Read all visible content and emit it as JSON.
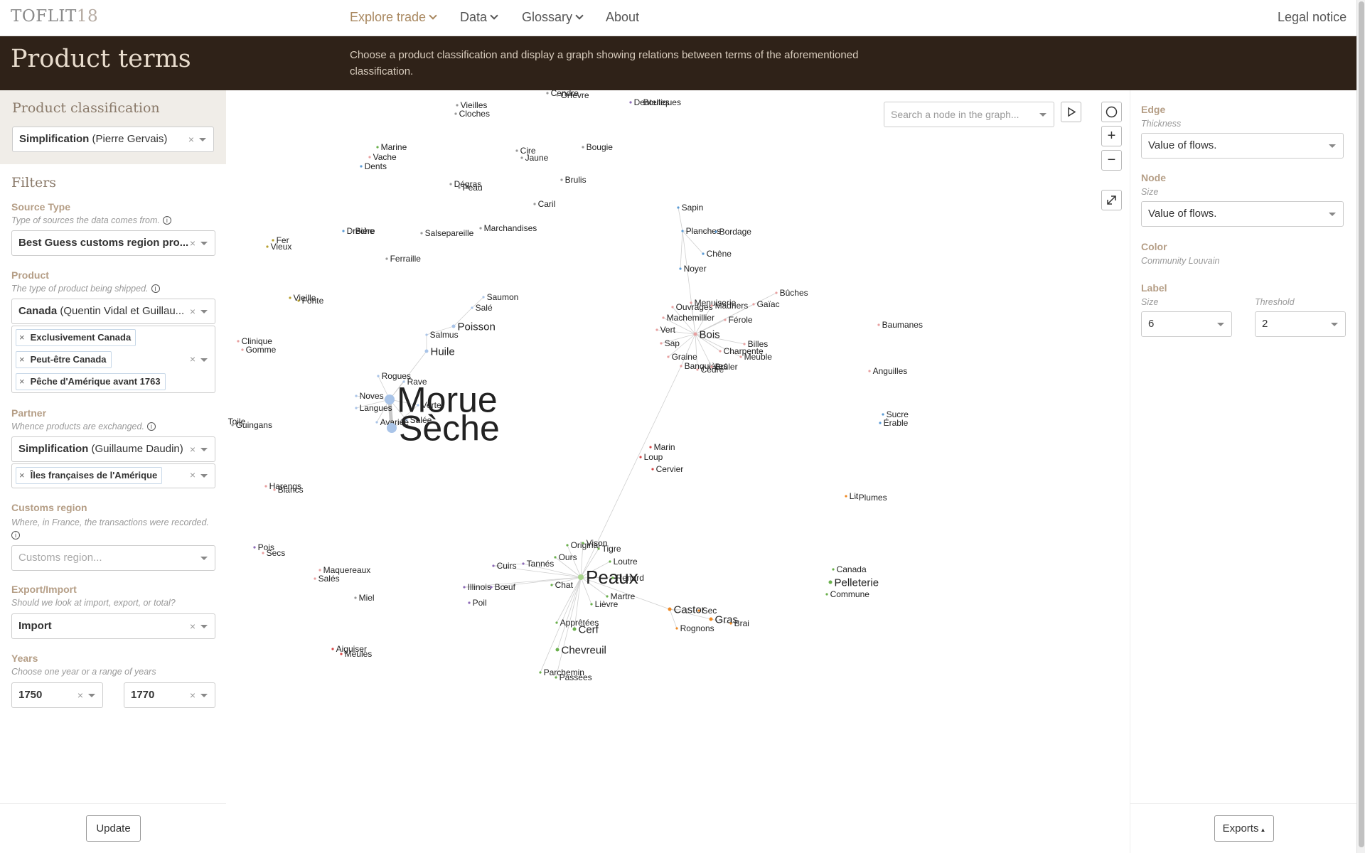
{
  "nav": {
    "brand": "TOFLIT",
    "brand_num": "18",
    "explore": "Explore trade",
    "data": "Data",
    "glossary": "Glossary",
    "about": "About",
    "legal": "Legal notice"
  },
  "banner": {
    "title": "Product terms",
    "description": "Choose a product classification and display a graph showing relations between terms of the aforementioned classification."
  },
  "left": {
    "classification_heading": "Product classification",
    "classification": {
      "name": "Simplification",
      "author": "(Pierre Gervais)"
    },
    "filters_heading": "Filters",
    "source_type": {
      "label": "Source Type",
      "help": "Type of sources the data comes from.",
      "value": "Best Guess customs region pro..."
    },
    "product": {
      "label": "Product",
      "help": "The type of product being shipped.",
      "classification_name": "Canada",
      "classification_author": "(Quentin Vidal et Guillau...",
      "tags": [
        "Exclusivement Canada",
        "Peut-être Canada",
        "Pêche d'Amérique avant 1763"
      ]
    },
    "partner": {
      "label": "Partner",
      "help": "Whence products are exchanged.",
      "classification_name": "Simplification",
      "classification_author": "(Guillaume Daudin)",
      "tags": [
        "Îles françaises de l'Amérique"
      ]
    },
    "customs": {
      "label": "Customs region",
      "help": "Where, in France, the transactions were recorded.",
      "placeholder": "Customs region..."
    },
    "export_import": {
      "label": "Export/Import",
      "help": "Should we look at import, export, or total?",
      "value": "Import"
    },
    "years": {
      "label": "Years",
      "help": "Choose one year or a range of years",
      "from": "1750",
      "to": "1770"
    },
    "update_label": "Update",
    "clear_symbol": "×",
    "info_symbol": "i"
  },
  "graph": {
    "search_placeholder": "Search a node in the graph...",
    "controls": {
      "zoom_in": "+",
      "zoom_out": "−"
    },
    "colors": {
      "blue": "#5b9bd5",
      "lightblue": "#a9c4e8",
      "green": "#6ab04c",
      "lightgreen": "#a8d58c",
      "orange": "#f08a24",
      "red": "#d64545",
      "pink": "#e8a0a0",
      "purple": "#8e6bb8",
      "gray": "#999999",
      "olive": "#b8a030",
      "edge": "#cfcfcf"
    },
    "nodes": [
      [
        "Cendre",
        770,
        131,
        "gray",
        1
      ],
      [
        "Orfèvre",
        784,
        134,
        "gray",
        1
      ],
      [
        "Vieilles",
        643,
        148,
        "gray",
        1
      ],
      [
        "Cloches",
        641,
        160,
        "gray",
        1
      ],
      [
        "Dentelles",
        887,
        144,
        "purple",
        1
      ],
      [
        "Boutiques",
        900,
        144,
        "gray",
        1
      ],
      [
        "Marine",
        531,
        207,
        "green",
        1
      ],
      [
        "Vache",
        520,
        221,
        "pink",
        1
      ],
      [
        "Dents",
        508,
        234,
        "blue",
        1
      ],
      [
        "Cire",
        727,
        212,
        "gray",
        1
      ],
      [
        "Jaune",
        734,
        222,
        "gray",
        1
      ],
      [
        "Bougie",
        820,
        207,
        "gray",
        1
      ],
      [
        "Dégras",
        634,
        259,
        "gray",
        1
      ],
      [
        "Peau",
        646,
        264,
        "gray",
        1
      ],
      [
        "Brulis",
        790,
        253,
        "gray",
        1
      ],
      [
        "Caril",
        752,
        287,
        "gray",
        1
      ],
      [
        "Drèche",
        483,
        325,
        "blue",
        1
      ],
      [
        "Bière",
        495,
        325,
        "gray",
        1
      ],
      [
        "Salsepareille",
        593,
        328,
        "gray",
        1
      ],
      [
        "Marchandises",
        676,
        321,
        "gray",
        1
      ],
      [
        "Fer",
        384,
        338,
        "olive",
        1
      ],
      [
        "Vieux",
        376,
        347,
        "olive",
        1
      ],
      [
        "Ferraille",
        544,
        364,
        "gray",
        1
      ],
      [
        "Saumon",
        680,
        418,
        "lightblue",
        1
      ],
      [
        "Salé",
        664,
        433,
        "lightblue",
        1
      ],
      [
        "Poisson",
        638,
        459,
        "lightblue",
        2
      ],
      [
        "Salmus",
        600,
        471,
        "lightblue",
        1
      ],
      [
        "Huile",
        600,
        494,
        "lightblue",
        2
      ],
      [
        "Vieille",
        408,
        419,
        "olive",
        1
      ],
      [
        "Fonte",
        420,
        423,
        "olive",
        1
      ],
      [
        "Clinique",
        335,
        480,
        "pink",
        1
      ],
      [
        "Gomme",
        341,
        492,
        "pink",
        1
      ],
      [
        "Rogues",
        532,
        529,
        "lightblue",
        1
      ],
      [
        "Rave",
        568,
        537,
        "lightblue",
        1
      ],
      [
        "Noves",
        501,
        557,
        "lightblue",
        1
      ],
      [
        "Langues",
        501,
        574,
        "lightblue",
        1
      ],
      [
        "Morue",
        548,
        562,
        "lightblue",
        5
      ],
      [
        "Verte",
        588,
        570,
        "lightblue",
        1
      ],
      [
        "Salée",
        572,
        591,
        "lightblue",
        1
      ],
      [
        "Avariée",
        530,
        594,
        "lightblue",
        1
      ],
      [
        "Sèche",
        551,
        602,
        "lightblue",
        5
      ],
      [
        "Toile",
        316,
        593,
        "gray",
        1
      ],
      [
        "Guingans",
        327,
        598,
        "gray",
        1
      ],
      [
        "Harengs",
        374,
        684,
        "pink",
        1
      ],
      [
        "Blancs",
        386,
        689,
        "pink",
        1
      ],
      [
        "Pois",
        358,
        770,
        "purple",
        1
      ],
      [
        "Secs",
        370,
        778,
        "pink",
        1
      ],
      [
        "Maquereaux",
        450,
        802,
        "pink",
        1
      ],
      [
        "Salés",
        443,
        814,
        "pink",
        1
      ],
      [
        "Miel",
        500,
        841,
        "gray",
        1
      ],
      [
        "Aiguiser",
        468,
        913,
        "red",
        1
      ],
      [
        "Meules",
        480,
        920,
        "red",
        1
      ],
      [
        "Sapin",
        954,
        292,
        "blue",
        1
      ],
      [
        "Planches",
        960,
        325,
        "blue",
        1
      ],
      [
        "Bordage",
        1007,
        326,
        "blue",
        1
      ],
      [
        "Chêne",
        989,
        357,
        "blue",
        1
      ],
      [
        "Noyer",
        957,
        378,
        "blue",
        1
      ],
      [
        "Menuiserie",
        972,
        426,
        "pink",
        1
      ],
      [
        "Ouvrages",
        946,
        432,
        "pink",
        1
      ],
      [
        "Madriers",
        1001,
        430,
        "pink",
        1
      ],
      [
        "Bûches",
        1092,
        412,
        "pink",
        1
      ],
      [
        "Gaïac",
        1060,
        428,
        "pink",
        1
      ],
      [
        "Machemillier",
        933,
        447,
        "pink",
        1
      ],
      [
        "Férole",
        1020,
        450,
        "pink",
        1
      ],
      [
        "Vert",
        924,
        464,
        "pink",
        1
      ],
      [
        "Bois",
        978,
        470,
        "pink",
        2
      ],
      [
        "Sap",
        930,
        483,
        "pink",
        1
      ],
      [
        "Billes",
        1047,
        484,
        "pink",
        1
      ],
      [
        "Charpente",
        1013,
        494,
        "pink",
        1
      ],
      [
        "Meuble",
        1042,
        502,
        "pink",
        1
      ],
      [
        "Graine",
        940,
        502,
        "pink",
        1
      ],
      [
        "Banquières",
        958,
        515,
        "pink",
        1
      ],
      [
        "Cèdre",
        981,
        520,
        "pink",
        1
      ],
      [
        "Brûler",
        1001,
        516,
        "pink",
        1
      ],
      [
        "Baumanes",
        1236,
        457,
        "pink",
        1
      ],
      [
        "Anguilles",
        1223,
        522,
        "pink",
        1
      ],
      [
        "Sucre",
        1242,
        583,
        "blue",
        1
      ],
      [
        "Érable",
        1238,
        595,
        "blue",
        1
      ],
      [
        "Marin",
        915,
        629,
        "red",
        1
      ],
      [
        "Loup",
        901,
        643,
        "red",
        1
      ],
      [
        "Cervier",
        918,
        660,
        "red",
        1
      ],
      [
        "Lit",
        1190,
        698,
        "orange",
        1
      ],
      [
        "Plumes",
        1203,
        700,
        "gray",
        1
      ],
      [
        "Original",
        798,
        767,
        "green",
        1
      ],
      [
        "Vison",
        820,
        764,
        "green",
        1
      ],
      [
        "Tigre",
        842,
        772,
        "green",
        1
      ],
      [
        "Ours",
        781,
        784,
        "green",
        1
      ],
      [
        "Loutre",
        858,
        790,
        "green",
        1
      ],
      [
        "Cuirs",
        694,
        796,
        "purple",
        1
      ],
      [
        "Tannés",
        736,
        793,
        "purple",
        1
      ],
      [
        "Peaux",
        817,
        812,
        "lightgreen",
        4
      ],
      [
        "Renard",
        862,
        813,
        "green",
        1
      ],
      [
        "Illinois",
        653,
        826,
        "purple",
        1
      ],
      [
        "Bœuf",
        691,
        826,
        "purple",
        1
      ],
      [
        "Chat",
        776,
        823,
        "green",
        1
      ],
      [
        "Martre",
        854,
        839,
        "green",
        1
      ],
      [
        "Poil",
        660,
        848,
        "purple",
        1
      ],
      [
        "Lièvre",
        832,
        850,
        "green",
        1
      ],
      [
        "Castor",
        942,
        857,
        "orange",
        2
      ],
      [
        "Sec",
        983,
        859,
        "orange",
        1
      ],
      [
        "Gras",
        1000,
        871,
        "orange",
        2
      ],
      [
        "Brai",
        1028,
        877,
        "orange",
        1
      ],
      [
        "Rognons",
        952,
        884,
        "orange",
        1
      ],
      [
        "Apprêtées",
        783,
        876,
        "green",
        1
      ],
      [
        "Cerf",
        808,
        885,
        "green",
        2
      ],
      [
        "Chevreuil",
        784,
        914,
        "green",
        2
      ],
      [
        "Parchemin",
        760,
        946,
        "green",
        1
      ],
      [
        "Passées",
        782,
        953,
        "green",
        1
      ],
      [
        "Canada",
        1172,
        801,
        "green",
        1
      ],
      [
        "Pelleterie",
        1168,
        819,
        "green",
        2
      ],
      [
        "Commune",
        1163,
        836,
        "green",
        1
      ]
    ],
    "edges": [
      [
        "Saumon",
        "Salé"
      ],
      [
        "Salé",
        "Poisson"
      ],
      [
        "Poisson",
        "Salmus"
      ],
      [
        "Salmus",
        "Huile"
      ],
      [
        "Huile",
        "Morue"
      ],
      [
        "Morue",
        "Sèche"
      ],
      [
        "Morue",
        "Rogues"
      ],
      [
        "Morue",
        "Rave"
      ],
      [
        "Morue",
        "Noves"
      ],
      [
        "Morue",
        "Langues"
      ],
      [
        "Morue",
        "Verte"
      ],
      [
        "Morue",
        "Salée"
      ],
      [
        "Morue",
        "Avariée"
      ],
      [
        "Sèche",
        "Salée"
      ],
      [
        "Sèche",
        "Verte"
      ],
      [
        "Sapin",
        "Planches"
      ],
      [
        "Planches",
        "Bordage"
      ],
      [
        "Planches",
        "Noyer"
      ],
      [
        "Planches",
        "Chêne"
      ],
      [
        "Planches",
        "Bois"
      ],
      [
        "Bois",
        "Menuiserie"
      ],
      [
        "Bois",
        "Ouvrages"
      ],
      [
        "Bois",
        "Madriers"
      ],
      [
        "Bois",
        "Bûches"
      ],
      [
        "Bois",
        "Gaïac"
      ],
      [
        "Bois",
        "Machemillier"
      ],
      [
        "Bois",
        "Férole"
      ],
      [
        "Bois",
        "Vert"
      ],
      [
        "Bois",
        "Sap"
      ],
      [
        "Bois",
        "Billes"
      ],
      [
        "Bois",
        "Charpente"
      ],
      [
        "Bois",
        "Meuble"
      ],
      [
        "Bois",
        "Graine"
      ],
      [
        "Bois",
        "Banquières"
      ],
      [
        "Bois",
        "Cèdre"
      ],
      [
        "Bois",
        "Brûler"
      ],
      [
        "Banquières",
        "Peaux"
      ],
      [
        "Peaux",
        "Original"
      ],
      [
        "Peaux",
        "Vison"
      ],
      [
        "Peaux",
        "Tigre"
      ],
      [
        "Peaux",
        "Ours"
      ],
      [
        "Peaux",
        "Loutre"
      ],
      [
        "Peaux",
        "Renard"
      ],
      [
        "Peaux",
        "Chat"
      ],
      [
        "Peaux",
        "Martre"
      ],
      [
        "Peaux",
        "Lièvre"
      ],
      [
        "Peaux",
        "Apprêtées"
      ],
      [
        "Peaux",
        "Cerf"
      ],
      [
        "Peaux",
        "Chevreuil"
      ],
      [
        "Peaux",
        "Parchemin"
      ],
      [
        "Peaux",
        "Passées"
      ],
      [
        "Peaux",
        "Castor"
      ],
      [
        "Peaux",
        "Cuirs"
      ],
      [
        "Peaux",
        "Tannés"
      ],
      [
        "Peaux",
        "Illinois"
      ],
      [
        "Peaux",
        "Bœuf"
      ],
      [
        "Castor",
        "Sec"
      ],
      [
        "Castor",
        "Gras"
      ],
      [
        "Castor",
        "Rognons"
      ],
      [
        "Gras",
        "Brai"
      ],
      [
        "Cuirs",
        "Tannés"
      ],
      [
        "Bœuf",
        "Illinois"
      ]
    ]
  },
  "right": {
    "edge_heading": "Edge",
    "thickness_label": "Thickness",
    "thickness_value": "Value of flows.",
    "node_heading": "Node",
    "size_label": "Size",
    "size_value": "Value of flows.",
    "color_heading": "Color",
    "color_value": "Community Louvain",
    "label_heading": "Label",
    "label_size_label": "Size",
    "label_size_value": "6",
    "threshold_label": "Threshold",
    "threshold_value": "2",
    "exports_label": "Exports"
  }
}
